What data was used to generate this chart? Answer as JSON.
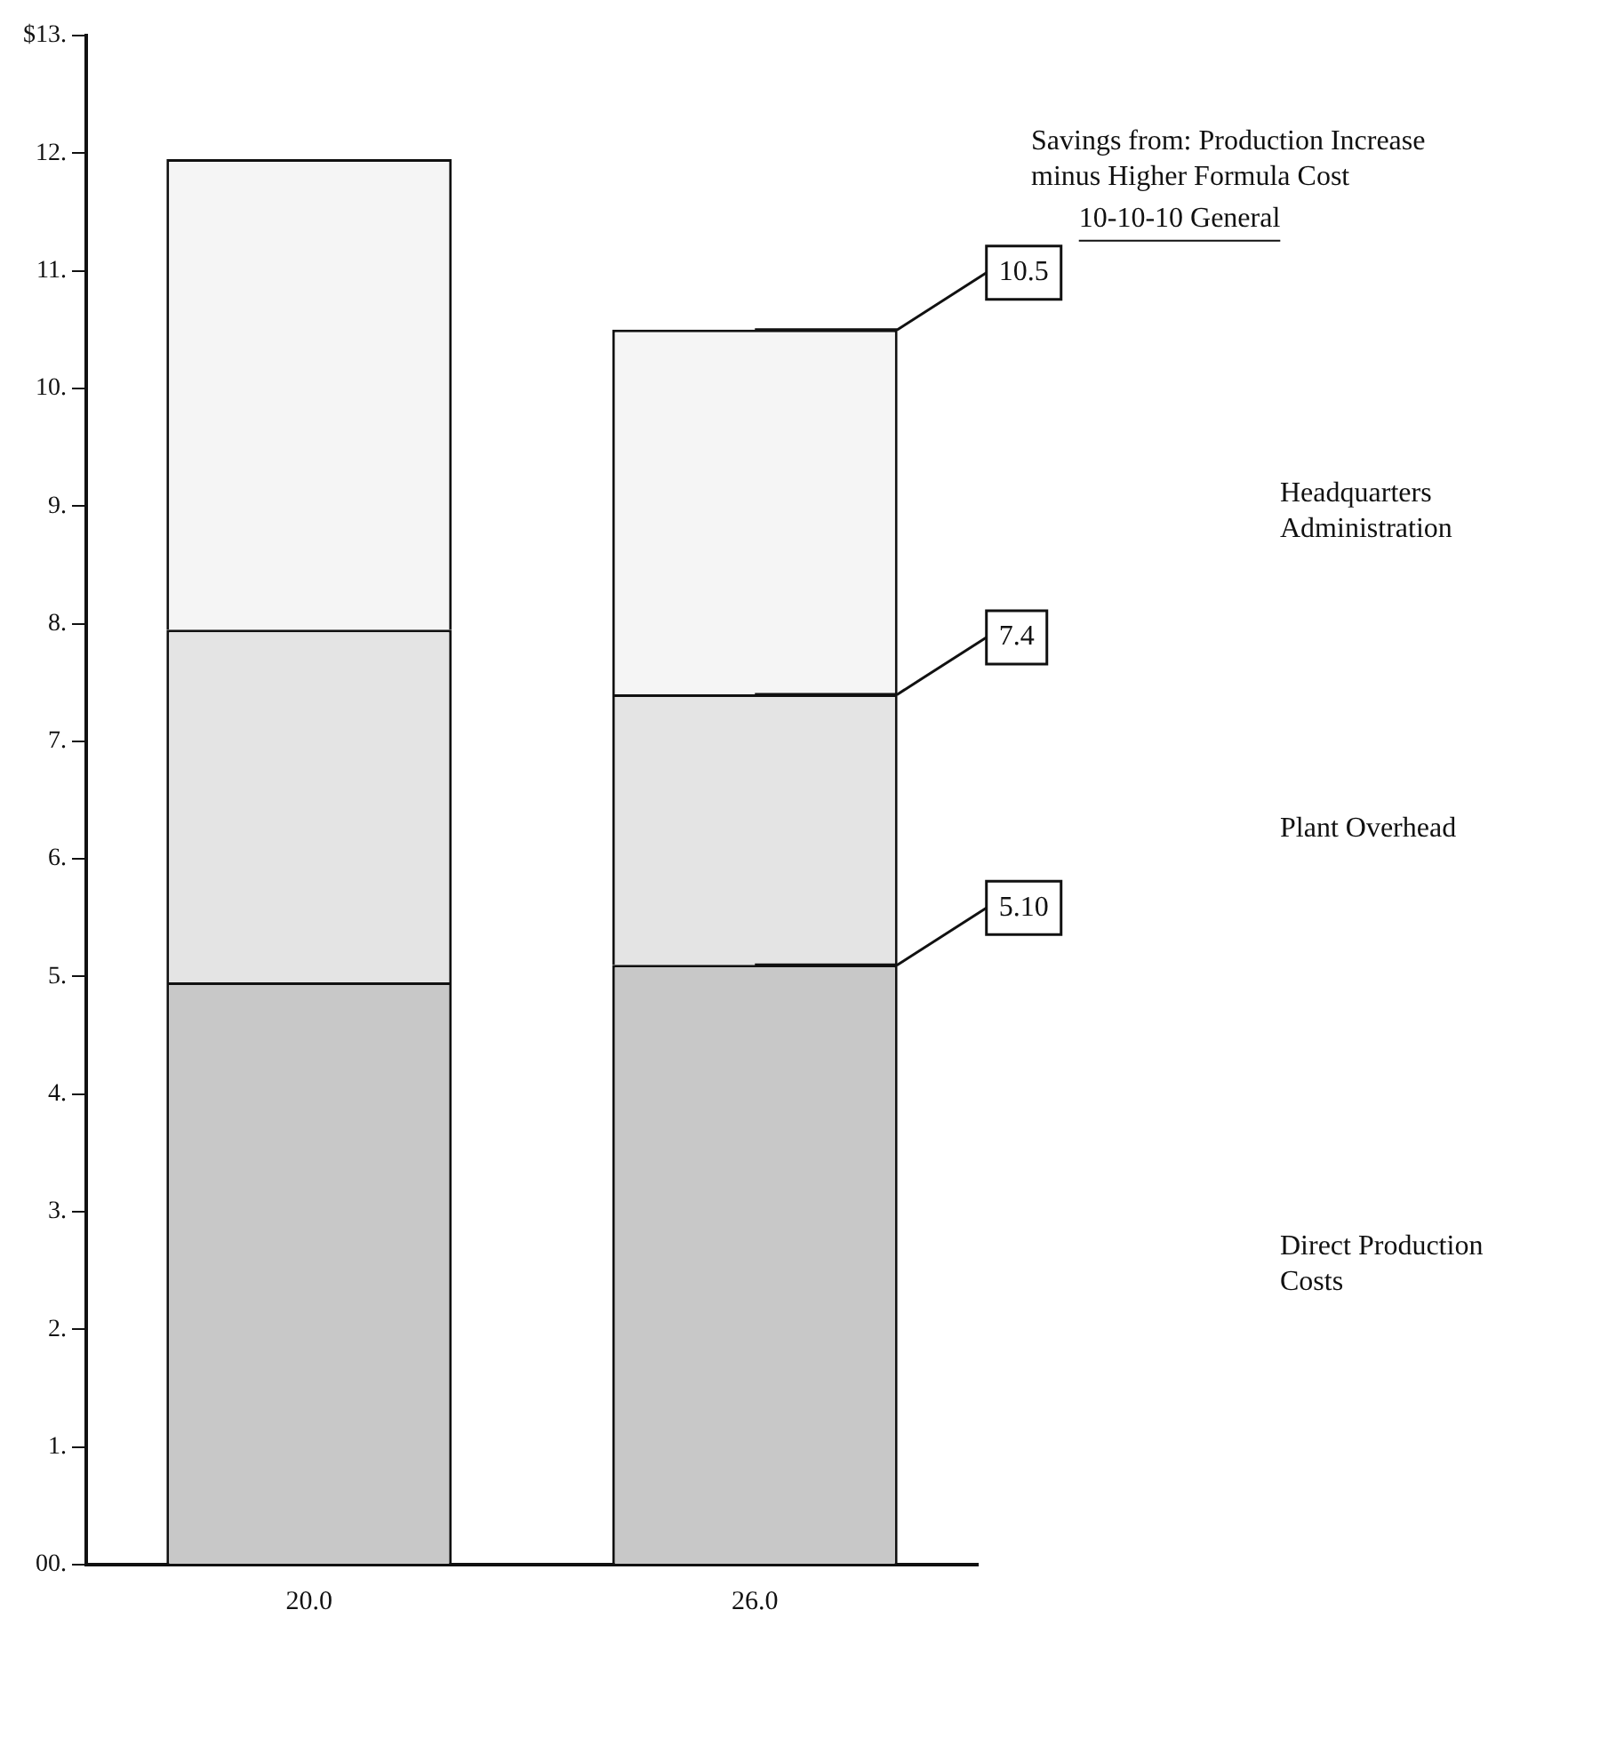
{
  "chart_data": {
    "type": "bar",
    "stacked": true,
    "categories": [
      "20.0",
      "26.0"
    ],
    "series": [
      {
        "name": "Direct Production Costs",
        "color": "#c8c8c8",
        "values": [
          4.95,
          5.1
        ]
      },
      {
        "name": "Plant Overhead",
        "color": "#e4e4e4",
        "values": [
          3.0,
          2.3
        ]
      },
      {
        "name": "Headquarters Administration",
        "color": "#f5f5f5",
        "values": [
          4.0,
          3.1
        ]
      }
    ],
    "ylim": [
      0,
      13
    ],
    "yticks": [
      {
        "value": 0,
        "label": "00."
      },
      {
        "value": 1,
        "label": "1."
      },
      {
        "value": 2,
        "label": "2."
      },
      {
        "value": 3,
        "label": "3."
      },
      {
        "value": 4,
        "label": "4."
      },
      {
        "value": 5,
        "label": "5."
      },
      {
        "value": 6,
        "label": "6."
      },
      {
        "value": 7,
        "label": "7."
      },
      {
        "value": 8,
        "label": "8."
      },
      {
        "value": 9,
        "label": "9."
      },
      {
        "value": 10,
        "label": "10."
      },
      {
        "value": 11,
        "label": "11."
      },
      {
        "value": 12,
        "label": "12."
      },
      {
        "value": 13,
        "label": "$13."
      }
    ],
    "grid": false,
    "legend": false,
    "annotations": [
      "Savings from: Production Increase minus Higher Formula Cost",
      "10-10-10 General",
      {
        "text": "10.5",
        "x": "26.0",
        "y": 10.5
      },
      {
        "text": "7.4",
        "x": "26.0",
        "y": 7.4
      },
      {
        "text": "5.10",
        "x": "26.0",
        "y": 5.1
      }
    ]
  }
}
